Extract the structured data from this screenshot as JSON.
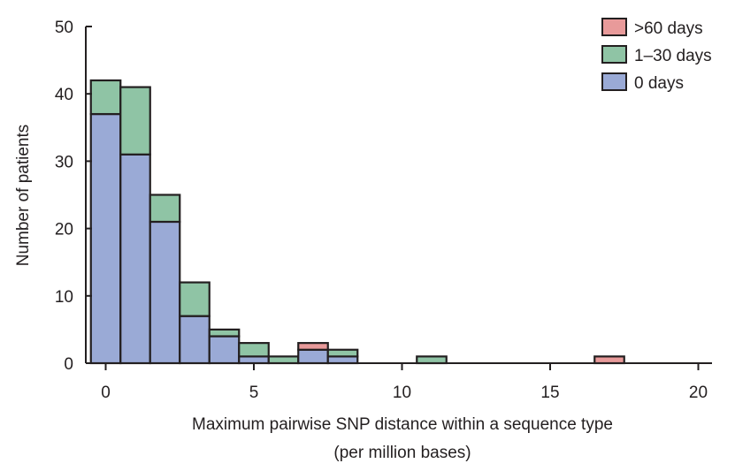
{
  "chart_data": {
    "type": "bar",
    "stacked": true,
    "title": "",
    "xlabel": "Maximum pairwise SNP distance within a sequence type",
    "xlabel_line2": "(per million bases)",
    "ylabel": "Number of patients",
    "xlim": [
      -0.5,
      20.5
    ],
    "ylim": [
      0,
      50
    ],
    "x_ticks": [
      0,
      5,
      10,
      15,
      20
    ],
    "y_ticks": [
      0,
      10,
      20,
      30,
      40,
      50
    ],
    "bin_width": 1,
    "legend_position": "top-right",
    "grid": false,
    "x": [
      0,
      1,
      2,
      3,
      4,
      5,
      6,
      7,
      8,
      11,
      17
    ],
    "series": [
      {
        "name": "0 days",
        "color": "#9aaad6",
        "values": [
          37,
          31,
          21,
          7,
          4,
          1,
          0,
          2,
          1,
          0,
          0
        ]
      },
      {
        "name": "1–30 days",
        "color": "#8fc4a5",
        "values": [
          5,
          10,
          4,
          5,
          1,
          2,
          1,
          0,
          1,
          1,
          0
        ]
      },
      {
        "name": ">60 days",
        "color": "#e89a9a",
        "values": [
          0,
          0,
          0,
          0,
          0,
          0,
          0,
          1,
          0,
          0,
          1
        ]
      }
    ],
    "legend_order": [
      ">60 days",
      "1–30 days",
      "0 days"
    ]
  }
}
